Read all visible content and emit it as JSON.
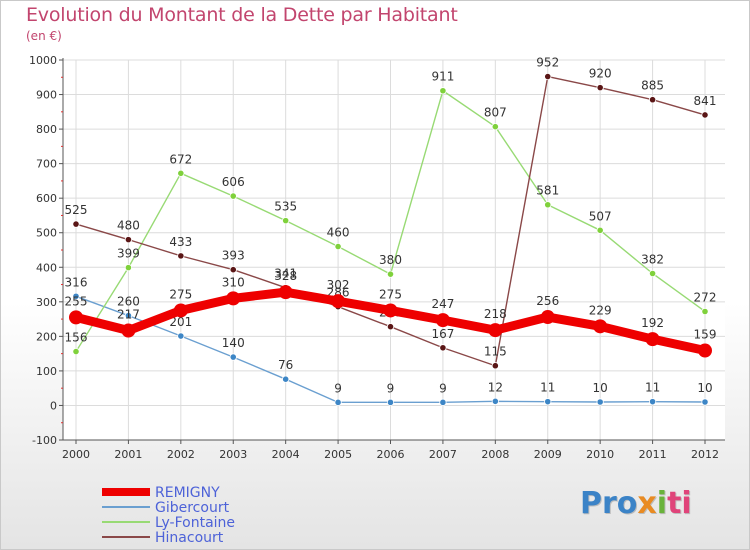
{
  "title": "Evolution du Montant de la Dette par Habitant",
  "subtitle": "(en €)",
  "brand": {
    "parts": [
      "Pro",
      "x",
      "i",
      "ti"
    ]
  },
  "chart_data": {
    "type": "line",
    "title": "Evolution du Montant de la Dette par Habitant",
    "ylabel": "(en €)",
    "ylim": [
      -100,
      1000
    ],
    "yticks": [
      "1000",
      "900",
      "800",
      "700",
      "600",
      "500",
      "400",
      "300",
      "200",
      "100",
      "0",
      "-100"
    ],
    "x": [
      "2000",
      "2001",
      "2002",
      "2003",
      "2004",
      "2005",
      "2006",
      "2007",
      "2008",
      "2009",
      "2010",
      "2011",
      "2012"
    ],
    "grid": true,
    "legend_position": "bottom-left",
    "series": [
      {
        "name": "REMIGNY",
        "color": "#ee0000",
        "values": [
          255,
          217,
          275,
          310,
          328,
          302,
          275,
          247,
          218,
          256,
          229,
          192,
          159
        ],
        "labels": [
          "255",
          "217",
          "275",
          "310",
          "328",
          "302",
          "275",
          "247",
          "218",
          "256",
          "229",
          "192",
          "159"
        ]
      },
      {
        "name": "Gibercourt",
        "color": "#6a9fd0",
        "values": [
          316,
          260,
          201,
          140,
          76,
          9,
          9,
          9,
          12,
          11,
          10,
          11,
          10
        ],
        "labels": [
          "316",
          "260",
          "201",
          "140",
          "76",
          "9",
          "9",
          "9",
          "12",
          "11",
          "10",
          "11",
          "10"
        ]
      },
      {
        "name": "Ly-Fontaine",
        "color": "#98da74",
        "values": [
          156,
          399,
          672,
          606,
          535,
          460,
          380,
          911,
          807,
          581,
          507,
          382,
          272
        ],
        "labels": [
          "156",
          "399",
          "672",
          "606",
          "535",
          "460",
          "380",
          "911",
          "807",
          "581",
          "507",
          "382",
          "272"
        ]
      },
      {
        "name": "Hinacourt",
        "color": "#8a4848",
        "values": [
          525,
          480,
          433,
          393,
          341,
          286,
          228,
          167,
          115,
          952,
          920,
          885,
          841
        ],
        "labels": [
          "525",
          "480",
          "433",
          "393",
          "341",
          "286",
          "228",
          "167",
          "115",
          "952",
          "920",
          "885",
          "841"
        ]
      }
    ],
    "legend_text_color": "#4d62d8",
    "marker_colors": {
      "Gibercourt": "#3d86c6",
      "Ly-Fontaine": "#7fd13b",
      "Hinacourt": "#5a1616"
    }
  }
}
